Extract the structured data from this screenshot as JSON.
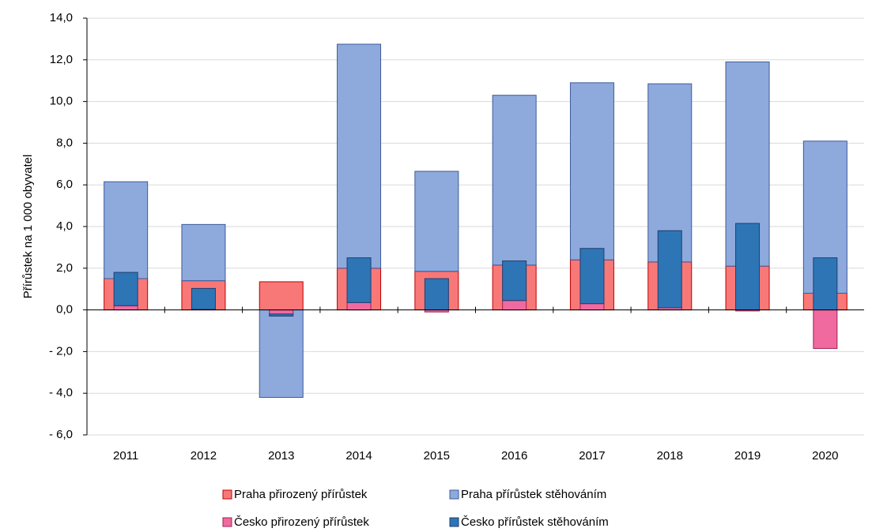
{
  "chart_data": {
    "type": "bar",
    "y_label": "Přírůstek na 1 000 obyvatel",
    "categories": [
      "2011",
      "2012",
      "2013",
      "2014",
      "2015",
      "2016",
      "2017",
      "2018",
      "2019",
      "2020"
    ],
    "series": [
      {
        "name": "Praha přirozený přírůstek",
        "color": "#f87878",
        "border": "#c00000",
        "values": [
          1.5,
          1.4,
          1.35,
          2.0,
          1.85,
          2.15,
          2.4,
          2.3,
          2.1,
          0.8
        ]
      },
      {
        "name": "Praha přírůstek stěhováním",
        "color": "#8eaadc",
        "border": "#3e5a9a",
        "values": [
          4.65,
          2.7,
          -4.2,
          10.75,
          4.8,
          8.15,
          8.5,
          8.55,
          9.8,
          7.3
        ]
      },
      {
        "name": "Česko přirozený přírůstek",
        "color": "#f06aa0",
        "border": "#a0204f",
        "values": [
          0.2,
          0.03,
          -0.2,
          0.35,
          -0.1,
          0.45,
          0.3,
          0.1,
          -0.05,
          -1.85
        ]
      },
      {
        "name": "Česko přírůstek stěhováním",
        "color": "#2e75b6",
        "border": "#1f3f6f",
        "values": [
          1.6,
          1.0,
          -0.1,
          2.15,
          1.5,
          1.9,
          2.65,
          3.7,
          4.15,
          2.5
        ]
      }
    ],
    "ylim": [
      -6,
      14
    ],
    "yticks": [
      {
        "value": -6,
        "label": "- 6,0"
      },
      {
        "value": -4,
        "label": "- 4,0"
      },
      {
        "value": -2,
        "label": "- 2,0"
      },
      {
        "value": 0,
        "label": "0,0"
      },
      {
        "value": 2,
        "label": "2,0"
      },
      {
        "value": 4,
        "label": "4,0"
      },
      {
        "value": 6,
        "label": "6,0"
      },
      {
        "value": 8,
        "label": "8,0"
      },
      {
        "value": 10,
        "label": "10,0"
      },
      {
        "value": 12,
        "label": "12,0"
      },
      {
        "value": 14,
        "label": "14,0"
      }
    ],
    "grid": true
  }
}
